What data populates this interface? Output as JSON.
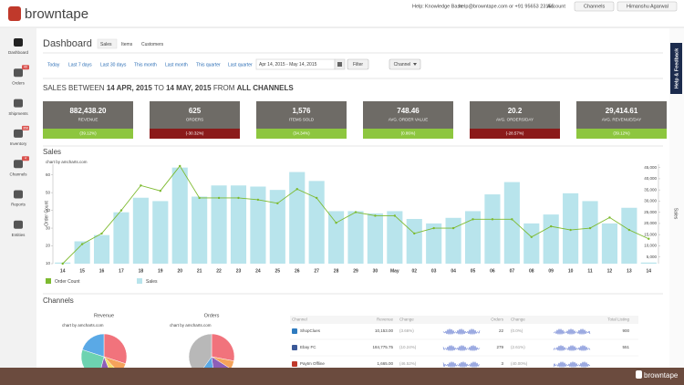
{
  "header": {
    "logo": "browntape",
    "help_label": "Help:",
    "knowledge_base": "Knowledge Base",
    "contact": "help@browntape.com or +91 95653 23155",
    "account": "Account",
    "channels_menu": "Channels",
    "user": "Himanshu Agarwal"
  },
  "sidebar": [
    {
      "label": "Dashboard"
    },
    {
      "label": "Orders",
      "badge": "40"
    },
    {
      "label": "Shipments"
    },
    {
      "label": "Inventory",
      "badge": "358"
    },
    {
      "label": "Channels",
      "badge": "4"
    },
    {
      "label": "Reports"
    },
    {
      "label": "Entities"
    }
  ],
  "page_title": "Dashboard",
  "tabs": [
    "Sales",
    "Items",
    "Customers"
  ],
  "filters": {
    "ranges": [
      "Today",
      "Last 7 days",
      "Last 30 days",
      "This month",
      "Last month",
      "This quarter",
      "Last quarter"
    ],
    "date_range": "Apr 14, 2015 - May 14, 2015",
    "filter_button": "Filter",
    "channel_button": "Channel"
  },
  "headline": {
    "prefix": "SALES BETWEEN",
    "from_date": "14 APR, 2015",
    "to": "TO",
    "to_date": "14 MAY, 2015",
    "from": "FROM",
    "channels": "ALL CHANNELS"
  },
  "kpis": [
    {
      "value": "882,438.20",
      "label": "REVENUE",
      "change": "(39.12%)",
      "trend": "up"
    },
    {
      "value": "625",
      "label": "ORDERS",
      "change": "(-30.32%)",
      "trend": "down"
    },
    {
      "value": "1,576",
      "label": "ITEMS SOLD",
      "change": "(34.34%)",
      "trend": "up"
    },
    {
      "value": "748.46",
      "label": "AVG. ORDER VALUE",
      "change": "(0.86%)",
      "trend": "up"
    },
    {
      "value": "20.2",
      "label": "AVG. ORDERS/DAY",
      "change": "(-28.57%)",
      "trend": "down"
    },
    {
      "value": "29,414.61",
      "label": "AVG. REVENUE/DAY",
      "change": "(39.12%)",
      "trend": "up"
    }
  ],
  "sales_chart": {
    "type": "bar-line",
    "title": "Sales",
    "credit": "chart by amcharts.com",
    "y_label": "Order Count",
    "y2_label": "Sales",
    "categories": [
      "14",
      "15",
      "16",
      "17",
      "18",
      "19",
      "20",
      "21",
      "22",
      "23",
      "24",
      "25",
      "26",
      "27",
      "28",
      "29",
      "30",
      "May",
      "02",
      "03",
      "04",
      "05",
      "06",
      "07",
      "08",
      "09",
      "10",
      "11",
      "12",
      "13",
      "14"
    ],
    "series": [
      {
        "name": "Order Count",
        "type": "line",
        "color": "#7dba2f",
        "values": [
          10,
          21,
          27,
          40,
          54,
          51,
          65,
          47,
          47,
          47,
          46,
          44,
          52,
          47,
          33,
          39,
          37,
          37,
          27,
          30,
          30,
          35,
          35,
          35,
          25,
          31,
          29,
          30,
          36,
          29,
          24
        ]
      },
      {
        "name": "Sales",
        "type": "bar",
        "axis": "y2",
        "color": "#b8e4ec",
        "values": [
          2500,
          12000,
          14800,
          25000,
          31500,
          30000,
          45000,
          32000,
          37000,
          37000,
          36500,
          35000,
          43000,
          39000,
          25500,
          25500,
          24500,
          25500,
          22000,
          20000,
          22500,
          25500,
          33000,
          38500,
          20000,
          24000,
          33500,
          30000,
          20000,
          27000,
          2500
        ]
      }
    ],
    "ylim": [
      10,
      66
    ],
    "yticks": [
      10,
      20,
      30,
      40,
      50,
      60
    ],
    "y2lim": [
      2000,
      46500
    ],
    "y2ticks": [
      {
        "value": 5000,
        "label": "5,000"
      },
      {
        "value": 10000,
        "label": "10,000"
      },
      {
        "value": 15000,
        "label": "15,000"
      },
      {
        "value": 20000,
        "label": "20,000"
      },
      {
        "value": 25000,
        "label": "25,000"
      },
      {
        "value": 30000,
        "label": "30,000"
      },
      {
        "value": 35000,
        "label": "35,000"
      },
      {
        "value": 40000,
        "label": "40,000"
      },
      {
        "value": 45000,
        "label": "45,000"
      }
    ]
  },
  "channels": {
    "title": "Channels",
    "revenue_pie": {
      "type": "pie",
      "title": "Revenue",
      "credit": "chart by amcharts.com",
      "values": [
        30,
        8,
        6,
        10,
        26,
        20
      ],
      "colors": [
        "#f1737c",
        "#f5a35b",
        "#f3e06a",
        "#8e5fb8",
        "#6dd3b0",
        "#5aa9e6"
      ]
    },
    "orders_pie": {
      "type": "pie",
      "title": "Orders",
      "credit": "chart by amcharts.com",
      "values": [
        28,
        6,
        14,
        12,
        40
      ],
      "colors": [
        "#f1737c",
        "#f5a35b",
        "#8e5fb8",
        "#5aa9e6",
        "#b8b8b8"
      ]
    },
    "table": {
      "headers": [
        "Channel",
        "Revenue",
        "Change",
        "Orders",
        "Change",
        "Total Listing"
      ],
      "rows": [
        [
          "ShopClues",
          "10,153.00",
          "(3.66%)",
          "22",
          "(0.0%)",
          "900"
        ],
        [
          "Ebay FC",
          "184,775.75",
          "(10.24%)",
          "279",
          "(2.61%)",
          "551"
        ],
        [
          "Paytm Offline",
          "1,665.00",
          "(46.52%)",
          "3",
          "(40.00%)"
        ]
      ]
    }
  },
  "feedback_tab": "Help & Feedback",
  "footer_logo": "browntape"
}
